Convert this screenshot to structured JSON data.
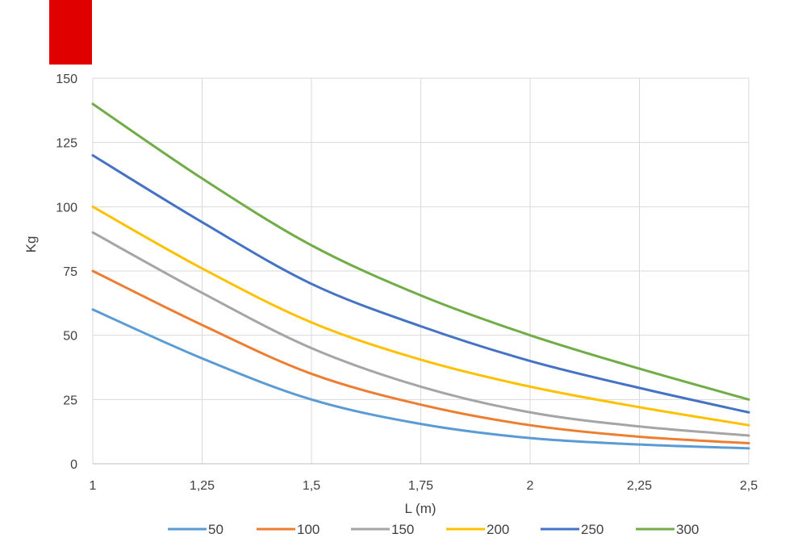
{
  "brand": {
    "color": "#e00000"
  },
  "chart_data": {
    "type": "line",
    "title": "",
    "xlabel": "L (m)",
    "ylabel": "Kg",
    "xlim": [
      1,
      2.5
    ],
    "ylim": [
      0,
      150
    ],
    "x_ticks": [
      1,
      1.25,
      1.5,
      1.75,
      2,
      2.25,
      2.5
    ],
    "x_tick_labels": [
      "1",
      "1,25",
      "1,5",
      "1,75",
      "2",
      "2,25",
      "2,5"
    ],
    "y_ticks": [
      0,
      25,
      50,
      75,
      100,
      125,
      150
    ],
    "y_tick_labels": [
      "0",
      "25",
      "50",
      "75",
      "100",
      "125",
      "150"
    ],
    "grid": true,
    "legend_position": "bottom",
    "x": [
      1,
      1.25,
      1.5,
      1.75,
      2,
      2.25,
      2.5
    ],
    "series": [
      {
        "name": "50",
        "color": "#5b9bd5",
        "values": [
          60,
          41,
          25,
          15.5,
          10,
          7.5,
          6
        ]
      },
      {
        "name": "100",
        "color": "#ed7d31",
        "values": [
          75,
          54,
          35,
          23,
          15,
          10.5,
          8
        ]
      },
      {
        "name": "150",
        "color": "#a5a5a5",
        "values": [
          90,
          66.5,
          45,
          30,
          20,
          14.5,
          11
        ]
      },
      {
        "name": "200",
        "color": "#ffc000",
        "values": [
          100,
          76,
          55,
          40.5,
          30,
          22,
          15
        ]
      },
      {
        "name": "250",
        "color": "#4472c4",
        "values": [
          120,
          94,
          70,
          53.5,
          40,
          29.5,
          20
        ]
      },
      {
        "name": "300",
        "color": "#70ad47",
        "values": [
          140,
          111,
          85,
          65.5,
          50,
          37,
          25
        ]
      }
    ]
  }
}
